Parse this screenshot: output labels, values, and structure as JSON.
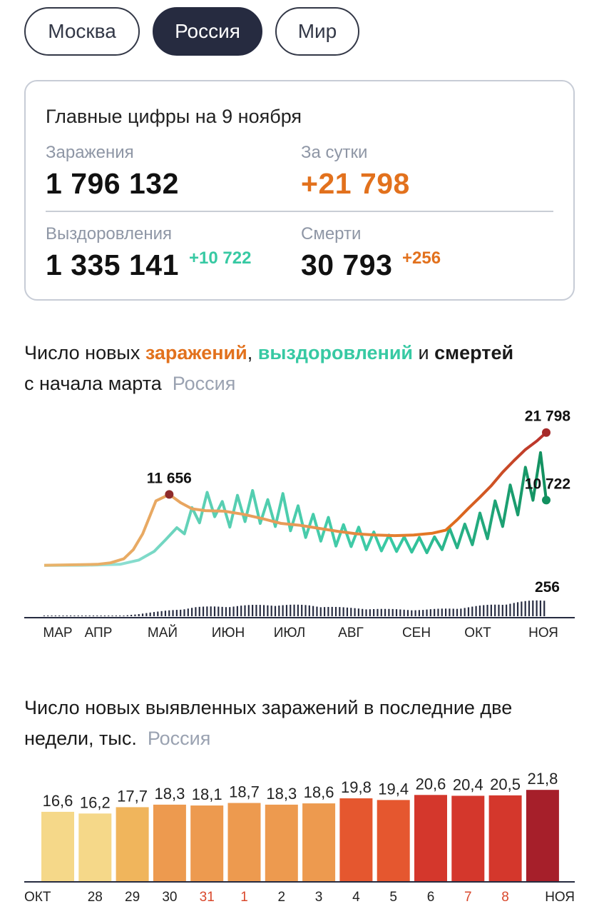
{
  "tabs": [
    {
      "label": "Москва",
      "active": false
    },
    {
      "label": "Россия",
      "active": true
    },
    {
      "label": "Мир",
      "active": false
    }
  ],
  "summary": {
    "title": "Главные цифры на 9 ноября",
    "infections_label": "Заражения",
    "infections_value": "1 796 132",
    "daily_label": "За сутки",
    "daily_value": "+21 798",
    "recoveries_label": "Выздоровления",
    "recoveries_value": "1 335 141",
    "recoveries_delta": "+10 722",
    "deaths_label": "Смерти",
    "deaths_value": "30 793",
    "deaths_delta": "+256"
  },
  "chart1_heading": {
    "part1": "Число новых ",
    "infections": "заражений",
    "comma": ", ",
    "recoveries": "выздоровлений",
    "and": " и ",
    "deaths": "смертей",
    "line2": "с начала марта",
    "region": "Россия"
  },
  "chart2_heading": {
    "line1": "Число новых выявленных заражений в последние две",
    "line2": "недели, тыс.",
    "region": "Россия"
  },
  "colors": {
    "orange": "#e2711d",
    "green": "#37c9a3",
    "dark": "#262b40",
    "red": "#d9472b"
  },
  "chart_data": [
    {
      "type": "line",
      "x_axis": [
        "МАР",
        "АПР",
        "МАЙ",
        "ИЮН",
        "ИЮЛ",
        "АВГ",
        "СЕН",
        "ОКТ",
        "НОЯ"
      ],
      "annotations": [
        {
          "series": "Заражения",
          "label": "11 656",
          "month": "МАЙ"
        },
        {
          "series": "Заражения",
          "label": "21 798",
          "month": "НОЯ"
        },
        {
          "series": "Выздоровления",
          "label": "10 722",
          "month": "НОЯ"
        },
        {
          "series": "Смерти",
          "label": "256",
          "month": "НОЯ"
        }
      ],
      "series": [
        {
          "name": "Заражения",
          "color": "#e2711d",
          "points": [
            [
              0,
              50
            ],
            [
              14,
              120
            ],
            [
              28,
              200
            ],
            [
              35,
              450
            ],
            [
              42,
              1100
            ],
            [
              47,
              2600
            ],
            [
              52,
              5200
            ],
            [
              56,
              8300
            ],
            [
              59,
              10600
            ],
            [
              63,
              11200
            ],
            [
              66,
              11656
            ],
            [
              72,
              10300
            ],
            [
              78,
              9300
            ],
            [
              85,
              9000
            ],
            [
              95,
              8900
            ],
            [
              105,
              8400
            ],
            [
              115,
              7700
            ],
            [
              125,
              6900
            ],
            [
              135,
              6600
            ],
            [
              145,
              6100
            ],
            [
              155,
              5600
            ],
            [
              165,
              5200
            ],
            [
              175,
              5000
            ],
            [
              185,
              4900
            ],
            [
              195,
              5000
            ],
            [
              205,
              5300
            ],
            [
              212,
              5800
            ],
            [
              218,
              7500
            ],
            [
              224,
              9400
            ],
            [
              230,
              11200
            ],
            [
              236,
              13100
            ],
            [
              242,
              15300
            ],
            [
              248,
              17200
            ],
            [
              254,
              19000
            ],
            [
              260,
              20400
            ],
            [
              265,
              21798
            ]
          ]
        },
        {
          "name": "Выздоровления",
          "color": "#37c9a3",
          "points": [
            [
              0,
              0
            ],
            [
              20,
              20
            ],
            [
              40,
              200
            ],
            [
              50,
              900
            ],
            [
              58,
              2300
            ],
            [
              64,
              4200
            ],
            [
              70,
              6200
            ],
            [
              74,
              5200
            ],
            [
              78,
              9500
            ],
            [
              82,
              7000
            ],
            [
              86,
              12000
            ],
            [
              90,
              8000
            ],
            [
              94,
              10500
            ],
            [
              98,
              6300
            ],
            [
              102,
              11500
            ],
            [
              106,
              7200
            ],
            [
              110,
              12300
            ],
            [
              114,
              6900
            ],
            [
              118,
              10800
            ],
            [
              122,
              6400
            ],
            [
              126,
              11800
            ],
            [
              130,
              5700
            ],
            [
              134,
              9800
            ],
            [
              138,
              4600
            ],
            [
              142,
              8400
            ],
            [
              146,
              4000
            ],
            [
              150,
              7900
            ],
            [
              154,
              3200
            ],
            [
              158,
              6700
            ],
            [
              162,
              3100
            ],
            [
              166,
              6300
            ],
            [
              170,
              2600
            ],
            [
              174,
              5500
            ],
            [
              178,
              2400
            ],
            [
              182,
              5000
            ],
            [
              186,
              2300
            ],
            [
              190,
              4700
            ],
            [
              194,
              2200
            ],
            [
              198,
              4600
            ],
            [
              202,
              2100
            ],
            [
              206,
              4700
            ],
            [
              210,
              2600
            ],
            [
              214,
              6100
            ],
            [
              218,
              2900
            ],
            [
              222,
              6800
            ],
            [
              226,
              3400
            ],
            [
              230,
              8600
            ],
            [
              234,
              4400
            ],
            [
              238,
              10600
            ],
            [
              242,
              6400
            ],
            [
              246,
              13200
            ],
            [
              250,
              8300
            ],
            [
              254,
              16100
            ],
            [
              258,
              10700
            ],
            [
              262,
              18500
            ],
            [
              265,
              10722
            ]
          ]
        },
        {
          "name": "Смерти",
          "color": "#262b40",
          "points": [
            [
              0,
              0
            ],
            [
              40,
              3
            ],
            [
              60,
              70
            ],
            [
              80,
              140
            ],
            [
              100,
              160
            ],
            [
              120,
              180
            ],
            [
              140,
              170
            ],
            [
              160,
              130
            ],
            [
              180,
              110
            ],
            [
              200,
              100
            ],
            [
              220,
              130
            ],
            [
              240,
              190
            ],
            [
              255,
              230
            ],
            [
              265,
              256
            ]
          ]
        }
      ]
    },
    {
      "type": "bar",
      "categories": [
        "ОКТ",
        "28",
        "29",
        "30",
        "31",
        "1",
        "2",
        "3",
        "4",
        "5",
        "6",
        "7",
        "8",
        "НОЯ"
      ],
      "values": [
        16.6,
        16.2,
        17.7,
        18.3,
        18.1,
        18.7,
        18.3,
        18.6,
        19.8,
        19.4,
        20.6,
        20.4,
        20.5,
        21.8
      ],
      "labels": [
        "16,6",
        "16,2",
        "17,7",
        "18,3",
        "18,1",
        "18,7",
        "18,3",
        "18,6",
        "19,8",
        "19,4",
        "20,6",
        "20,4",
        "20,5",
        "21,8"
      ],
      "red_tick_labels": [
        "31",
        "1",
        "7",
        "8"
      ],
      "colors": [
        "#f5d889",
        "#f5d889",
        "#f0b55c",
        "#ed9a4f",
        "#ed9a4f",
        "#ed9a4f",
        "#ed9a4f",
        "#ed9a4f",
        "#e5572f",
        "#e5572f",
        "#d4372c",
        "#d4372c",
        "#d4372c",
        "#a61f2a"
      ],
      "ylim": [
        0,
        22
      ]
    }
  ]
}
